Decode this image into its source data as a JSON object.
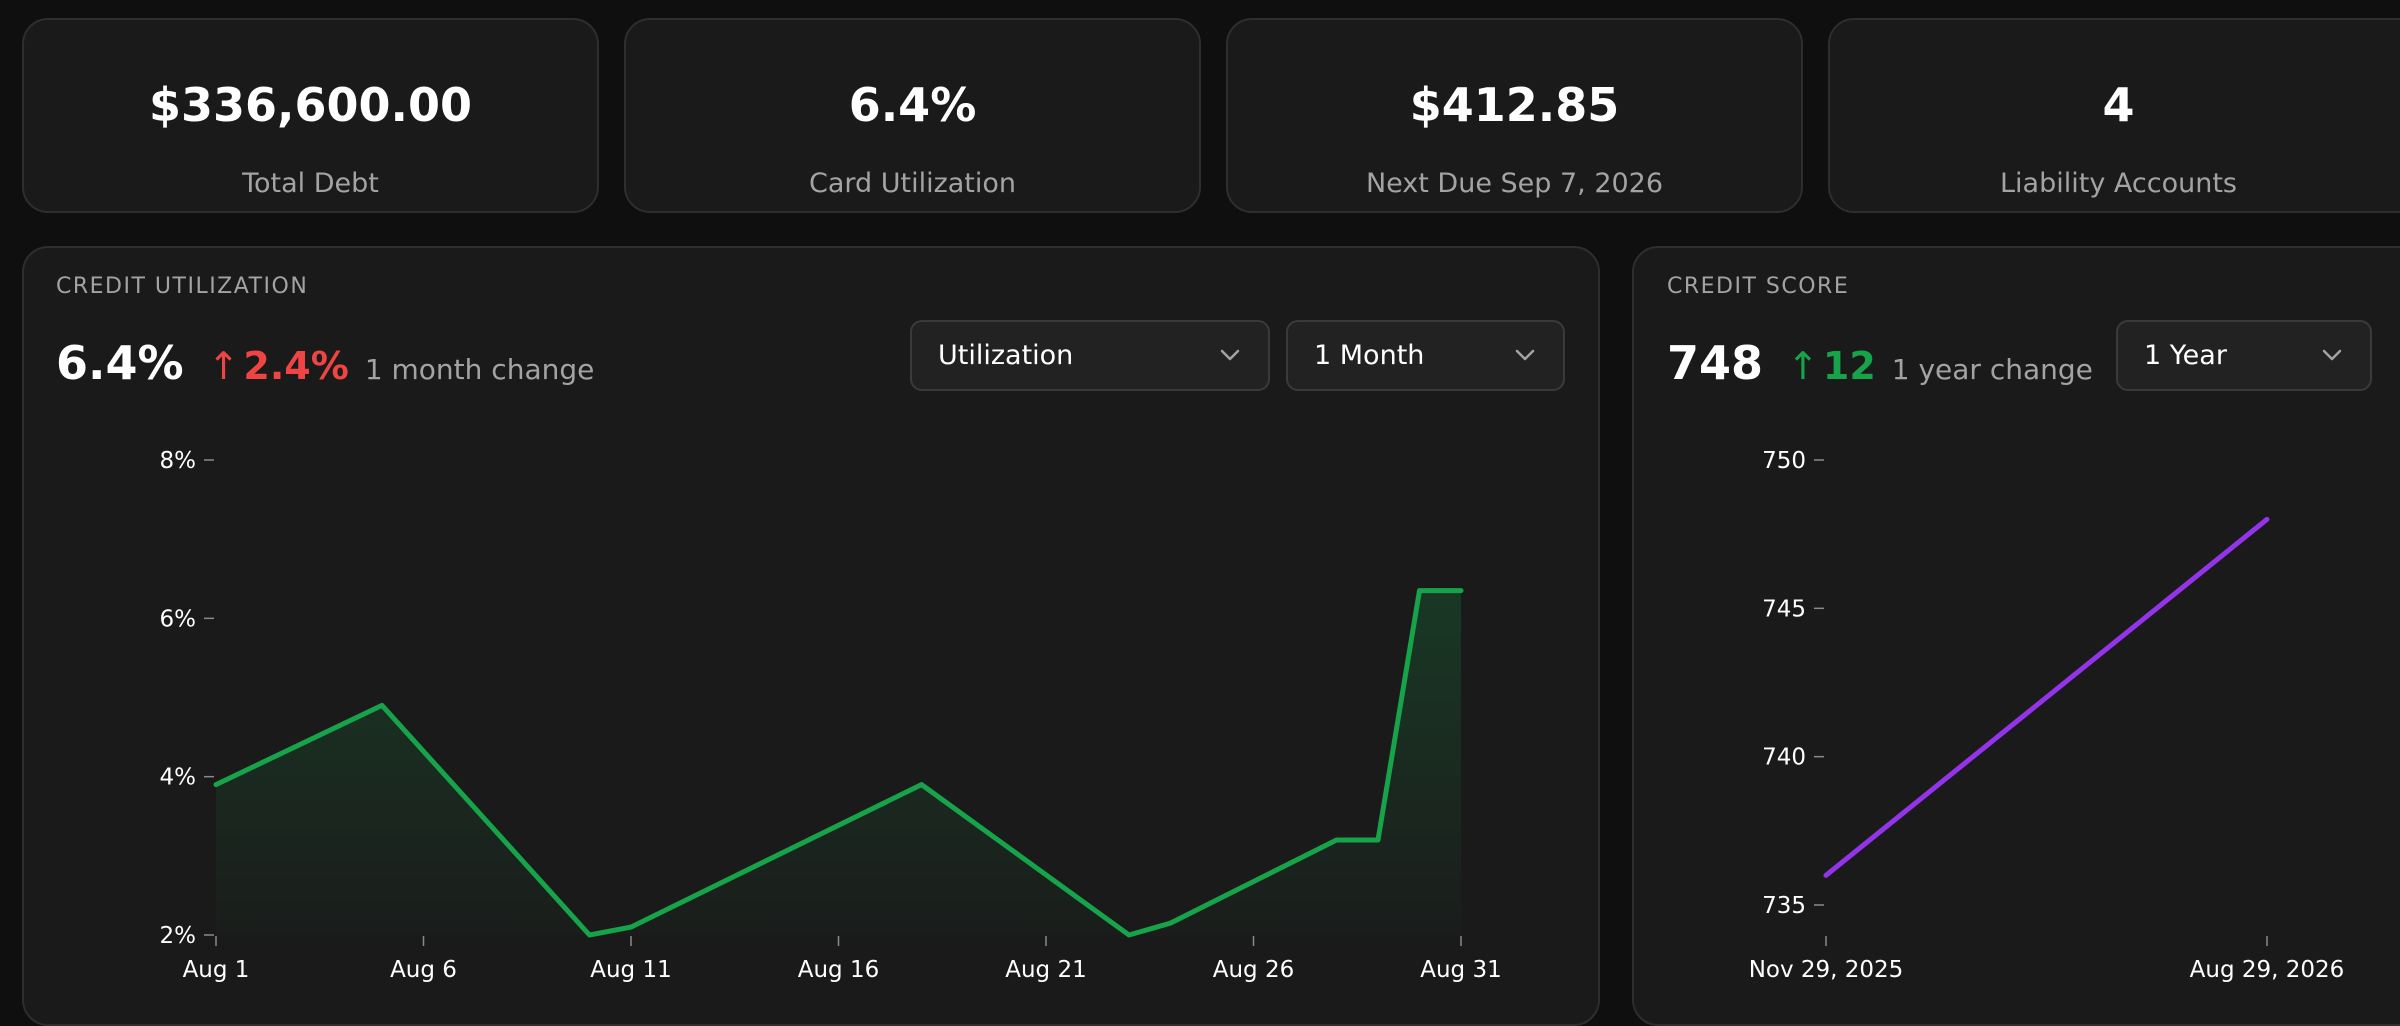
{
  "stats": [
    {
      "value": "$336,600.00",
      "label": "Total Debt"
    },
    {
      "value": "6.4%",
      "label": "Card Utilization"
    },
    {
      "value": "$412.85",
      "label": "Next Due Sep 7, 2026"
    },
    {
      "value": "4",
      "label": "Liability Accounts"
    }
  ],
  "utilization_panel": {
    "title": "CREDIT UTILIZATION",
    "value": "6.4%",
    "change_arrow": "↑",
    "change": "2.4%",
    "change_label": "1 month change",
    "metric_select": "Utilization",
    "range_select": "1 Month",
    "icons": {
      "select_chevron": "chevron-down-icon",
      "change_up": "arrow-up-icon"
    },
    "colors": {
      "line": "#16a34a",
      "change": "#ef4444"
    }
  },
  "score_panel": {
    "title": "CREDIT SCORE",
    "value": "748",
    "change_arrow": "↑",
    "change": "12",
    "change_label": "1 year change",
    "range_select": "1 Year",
    "colors": {
      "line": "#9333ea",
      "change": "#16a34a"
    }
  },
  "chart_data": [
    {
      "type": "area",
      "x_tick_labels": [
        "Aug 1",
        "Aug 6",
        "Aug 11",
        "Aug 16",
        "Aug 21",
        "Aug 26",
        "Aug 31"
      ],
      "y_tick_labels": [
        "8%",
        "6%",
        "4%",
        "2%"
      ],
      "x": [
        1,
        5,
        10,
        11,
        18,
        23,
        24,
        28,
        29,
        30,
        31
      ],
      "y": [
        3.9,
        4.9,
        2.0,
        2.1,
        3.9,
        2.0,
        2.15,
        3.2,
        3.2,
        6.35,
        6.35
      ],
      "ylim": [
        2,
        8
      ],
      "xlim": [
        1,
        31
      ],
      "grid": false
    },
    {
      "type": "line",
      "x_tick_labels": [
        "Nov 29, 2025",
        "Aug 29, 2026"
      ],
      "y_tick_labels": [
        "750",
        "745",
        "740",
        "735"
      ],
      "x": [
        "2025-11-29",
        "2026-08-29"
      ],
      "y": [
        736,
        748
      ],
      "ylim": [
        735,
        750
      ],
      "grid": false
    }
  ]
}
